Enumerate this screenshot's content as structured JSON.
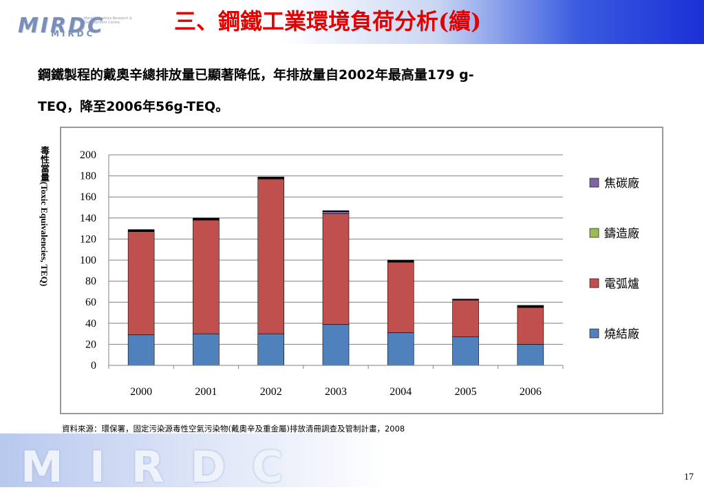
{
  "header": {
    "title": "三、鋼鐵工業環境負荷分析(續)",
    "logo_text": "MIRDC",
    "logo_sub": "MIRDC",
    "logo_tagline": "Metal Industries Research & Development Centre"
  },
  "body": {
    "line1": "鋼鐵製程的戴奧辛總排放量已顯著降低，年排放量自2002年最高量179 g-",
    "line2": "TEQ，降至2006年56g-TEQ。"
  },
  "chart_data": {
    "type": "bar",
    "stacked": true,
    "categories": [
      "2000",
      "2001",
      "2002",
      "2003",
      "2004",
      "2005",
      "2006"
    ],
    "series": [
      {
        "name": "燒結廠",
        "color": "#4f81bd",
        "values": [
          29,
          30,
          30,
          39,
          31,
          27,
          20
        ]
      },
      {
        "name": "電弧爐",
        "color": "#c0504d",
        "values": [
          98,
          108,
          147,
          105,
          67,
          35,
          35
        ]
      },
      {
        "name": "鑄造廠",
        "color": "#9bbb59",
        "values": [
          0,
          0,
          0,
          0,
          0,
          0,
          0
        ]
      },
      {
        "name": "焦碳廠",
        "color": "#8064a2",
        "values": [
          0,
          0,
          0,
          2,
          0,
          0,
          0
        ]
      },
      {
        "name": "",
        "color": "#000000",
        "values": [
          2,
          2,
          2,
          1,
          2,
          1,
          2
        ]
      }
    ],
    "ylabel": "毒性當量(Toxic Equivalencies, TEQ)",
    "ylim": [
      0,
      200
    ],
    "yticks": [
      0,
      20,
      40,
      60,
      80,
      100,
      120,
      140,
      160,
      180,
      200
    ],
    "grid": true,
    "legend": {
      "position": "right",
      "order": [
        "焦碳廠",
        "鑄造廠",
        "電弧爐",
        "燒結廠"
      ]
    }
  },
  "source": "資料來源：環保署，固定污染源毒性空氣污染物(戴奧辛及重金屬)排放清冊調查及管制計畫，2008",
  "footer": {
    "page_number": "17",
    "watermark": "MIRDC"
  }
}
